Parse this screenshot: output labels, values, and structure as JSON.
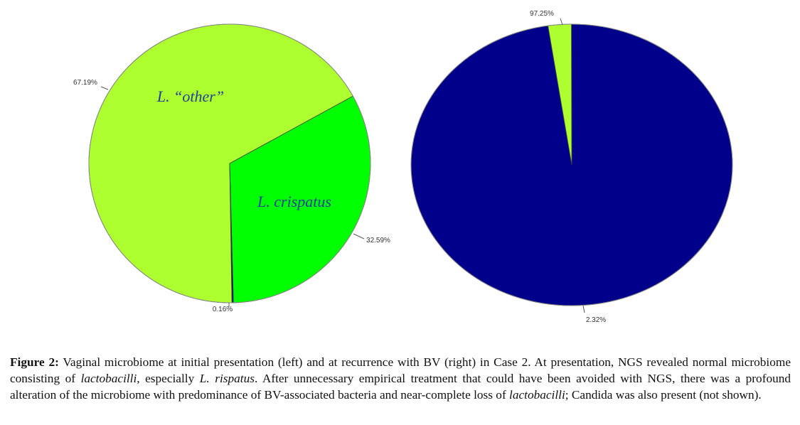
{
  "chart_data": [
    {
      "type": "pie",
      "slices": [
        {
          "label": "L. “other”",
          "value": 67.19,
          "value_label": "67.19%",
          "color": "#adff2f"
        },
        {
          "label": "L. crispatus",
          "value": 32.59,
          "value_label": "32.59%",
          "color": "#00ff00"
        },
        {
          "label": "",
          "value": 0.16,
          "value_label": "0.16%",
          "color": "#00008b"
        }
      ]
    },
    {
      "type": "pie",
      "slices": [
        {
          "label": "",
          "value": 97.25,
          "value_label": "97.25%",
          "color": "#00008b"
        },
        {
          "label": "",
          "value": 2.32,
          "value_label": "2.32%",
          "color": "#adff2f"
        }
      ]
    }
  ],
  "caption": {
    "label": "Figure 2:",
    "p1": " Vaginal microbiome at initial presentation (left) and at recurrence with BV (right) in Case 2. At presentation, NGS revealed normal microbiome consisting of ",
    "i1": "lactobacilli",
    "p2": ", especially ",
    "i2": "L. rispatus",
    "p3": ". After unnecessary empirical treatment that could have been avoided with NGS, there was a profound alteration of the microbiome with predominance of BV-associated bacteria and near-complete loss of ",
    "i3": "lactobacilli",
    "p4": "; Candida was also present (not shown)."
  }
}
